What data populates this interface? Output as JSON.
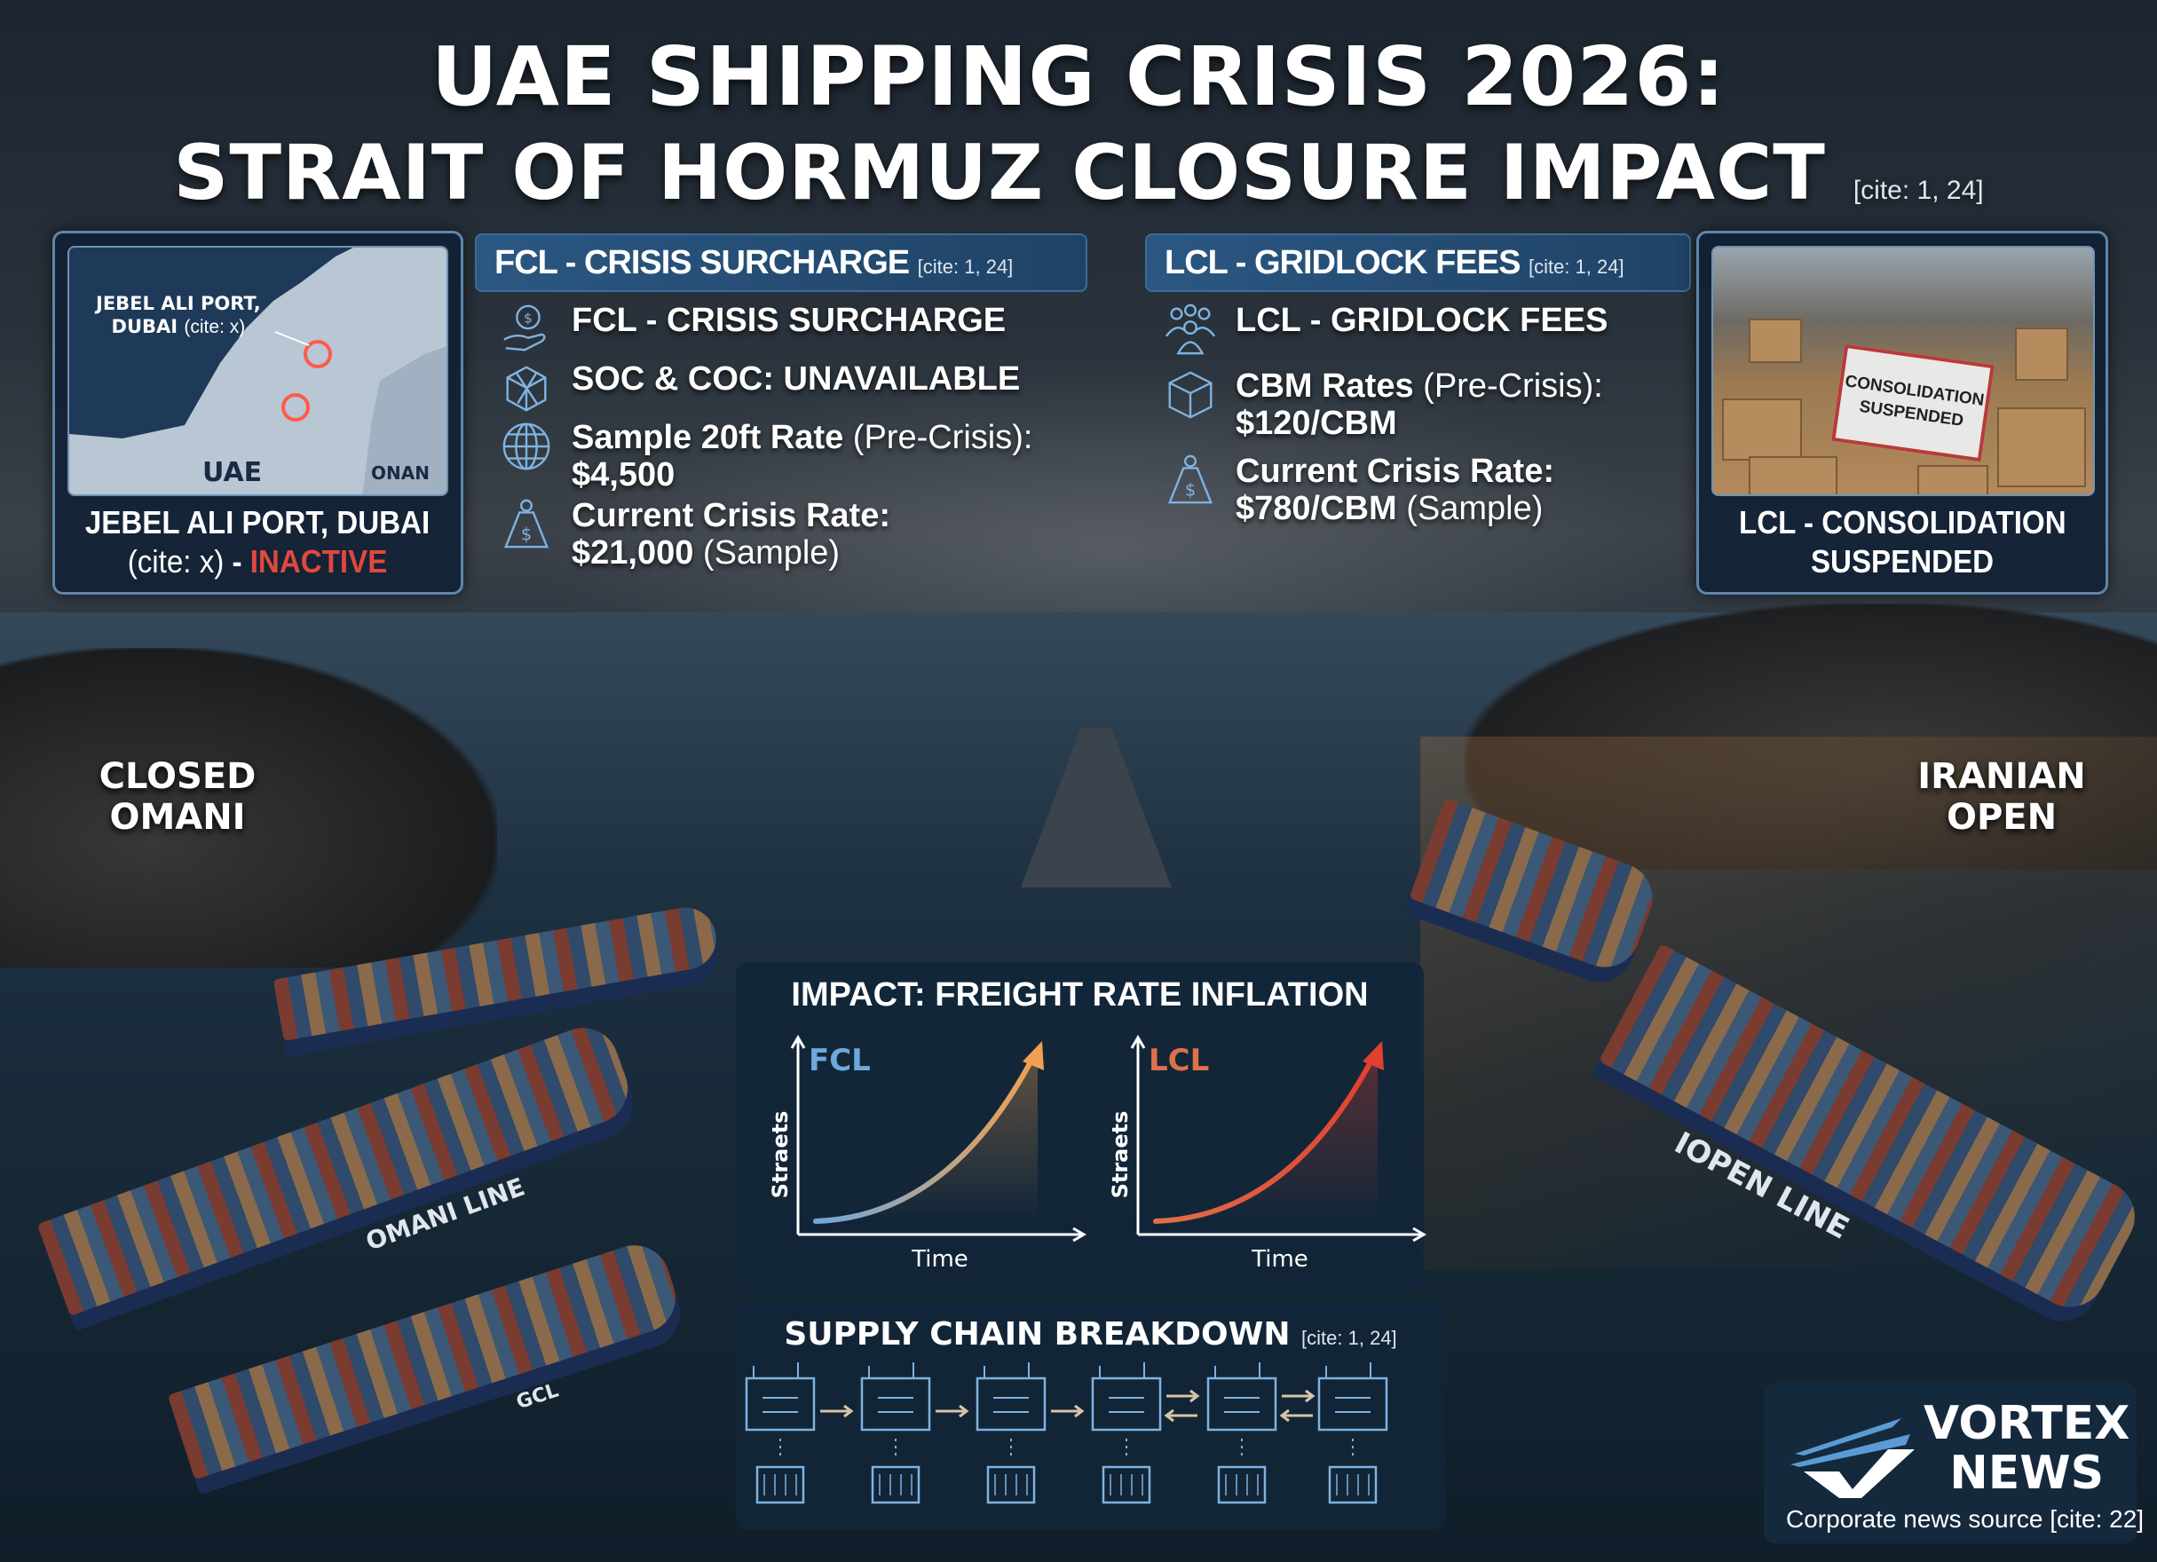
{
  "title": {
    "line1": "UAE SHIPPING CRISIS 2026:",
    "line2": "STRAIT OF HORMUZ CLOSURE IMPACT",
    "cite": "[cite: 1, 24]"
  },
  "map_panel": {
    "callout": "JEBEL ALI PORT,",
    "callout2": "DUBAI",
    "callout_cite": "(cite: x)",
    "label_uae": "UAE",
    "label_oman": "ONAN",
    "caption_line1": "JEBEL ALI PORT, DUBAI",
    "caption_cite": "(cite: x)",
    "caption_dash": " - ",
    "caption_status": "INACTIVE",
    "status_color": "#e0483e"
  },
  "fcl": {
    "header": "FCL - CRISIS SURCHARGE",
    "header_cite": "[cite: 1, 24]",
    "items": [
      {
        "icon": "hand-dollar-icon",
        "bold": "FCL - CRISIS SURCHARGE",
        "normal": ""
      },
      {
        "icon": "broken-container-icon",
        "bold": "SOC & COC: UNAVAILABLE",
        "normal": ""
      },
      {
        "icon": "globe-icon",
        "bold": "Sample 20ft Rate",
        "normal": " (Pre-Crisis):",
        "value": "$4,500",
        "value_suffix": ""
      },
      {
        "icon": "money-bag-icon",
        "bold": "Current Crisis Rate:",
        "normal": "",
        "value": "$21,000",
        "value_suffix": " (Sample)"
      }
    ]
  },
  "lcl": {
    "header": "LCL - GRIDLOCK FEES",
    "header_cite": "[cite: 1, 24]",
    "items": [
      {
        "icon": "people-group-icon",
        "bold": "LCL - GRIDLOCK FEES",
        "normal": ""
      },
      {
        "icon": "cube-icon",
        "bold": "CBM Rates",
        "normal": " (Pre-Crisis):",
        "value": "$120/CBM",
        "value_suffix": ""
      },
      {
        "icon": "money-bag-icon",
        "bold": "Current Crisis Rate:",
        "normal": "",
        "value": "$780/CBM",
        "value_suffix": " (Sample)"
      }
    ]
  },
  "photo_panel": {
    "sign_line1": "CONSOLIDATION",
    "sign_line2": "SUSPENDED",
    "caption_line1": "LCL - CONSOLIDATION",
    "caption_line2": "SUSPENDED"
  },
  "side_labels": {
    "left1": "CLOSED",
    "left2": "OMANI",
    "right1": "IRANIAN",
    "right2": "OPEN"
  },
  "ship_labels": {
    "omani": "OMANI LINE",
    "open": "IOPEN LINE",
    "gcl": "GCL"
  },
  "impact": {
    "title": "IMPACT: FREIGHT RATE INFLATION",
    "charts": [
      {
        "label": "FCL",
        "ylabel": "Straets",
        "xlabel": "Time",
        "color": "#6fa8dc",
        "end_color": "#f0a050"
      },
      {
        "label": "LCL",
        "ylabel": "Straets",
        "xlabel": "Time",
        "color": "#e0704a",
        "end_color": "#e04030"
      }
    ]
  },
  "supply_chain": {
    "title": "SUPPLY CHAIN BREAKDOWN",
    "cite": "[cite: 1, 24]",
    "steps": [
      "factory-icon",
      "port-crane-icon",
      "cargo-ship-icon",
      "truck-icon",
      "customs-icon",
      "warehouse-icon"
    ],
    "sub_icons": [
      "container-icon",
      "container-icon",
      "container-icon",
      "database-icon",
      "ship-icon",
      "distribution-icon"
    ],
    "icon_color": "#7fb2e0"
  },
  "logo": {
    "name_line1": "VORTEX",
    "name_line2": "NEWS",
    "tagline": "Corporate news source [cite: 22]"
  }
}
